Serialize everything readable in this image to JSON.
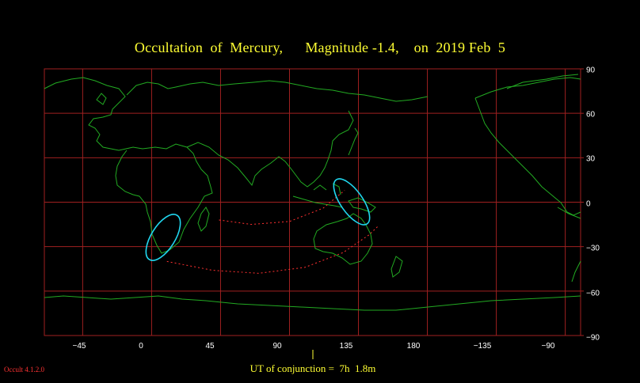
{
  "title": "Occultation  of  Mercury,      Magnitude -1.4,    on  2019 Feb  5",
  "conjunction": {
    "label": "UT of conjunction =  7h  1.8m"
  },
  "software_version": "Occult 4.1.2.0",
  "map": {
    "projection": "cylindrical",
    "longitude_ticks": [
      "−45",
      "0",
      "45",
      "90",
      "135",
      "180",
      "−135",
      "−90"
    ],
    "latitude_ticks": [
      "90",
      "60",
      "30",
      "0",
      "−30",
      "−60",
      "−90"
    ],
    "colors": {
      "background": "#000000",
      "grid": "#a02020",
      "coastline": "#22aa22",
      "visibility_limit": "#ff3030",
      "region_outline": "#20d8f0",
      "title_text": "#ffff33"
    }
  },
  "chart_data": {
    "type": "map",
    "xlim": [
      -70,
      280
    ],
    "ylim": [
      -90,
      90
    ],
    "grid": true,
    "visibility_regions": [
      {
        "name": "southern-africa region",
        "center_lon": 15,
        "center_lat": -15
      },
      {
        "name": "new-guinea region",
        "center_lon": 143,
        "center_lat": 0
      }
    ],
    "limit_curves": [
      {
        "points": [
          [
            44,
            -12
          ],
          [
            65,
            -15
          ],
          [
            90,
            -13
          ],
          [
            112,
            -4
          ],
          [
            126,
            8
          ]
        ]
      },
      {
        "points": [
          [
            10,
            -40
          ],
          [
            40,
            -46
          ],
          [
            70,
            -48
          ],
          [
            100,
            -44
          ],
          [
            125,
            -34
          ],
          [
            142,
            -22
          ],
          [
            148,
            -16
          ]
        ]
      }
    ]
  }
}
